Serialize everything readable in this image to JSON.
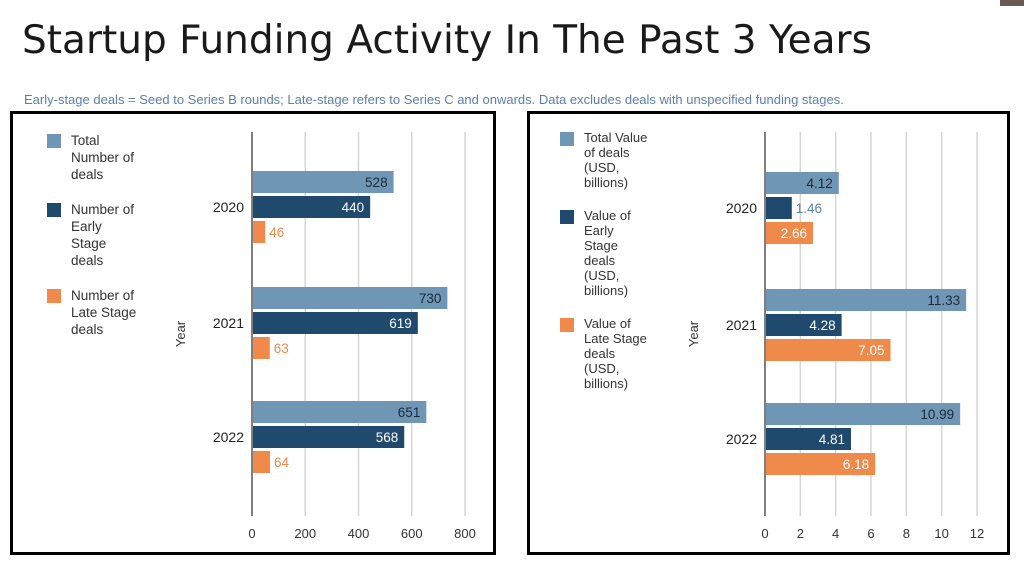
{
  "title": "Startup Funding Activity In The Past 3 Years",
  "subtitle": "Early-stage deals = Seed to Series B rounds; Late-stage refers to Series C and onwards. Data excludes deals with unspecified funding stages.",
  "colors": {
    "total": "#7096b6",
    "early": "#1f4a6e",
    "late": "#f08a4b",
    "grid": "#d6d6d6",
    "axis": "#555555"
  },
  "chart_data": [
    {
      "type": "bar",
      "orientation": "horizontal",
      "categories": [
        "2020",
        "2021",
        "2022"
      ],
      "ylabel": "Year",
      "xlim": [
        0,
        800
      ],
      "xticks": [
        "0",
        "200",
        "400",
        "600",
        "800"
      ],
      "legend_position": "left",
      "grid": true,
      "series": [
        {
          "name": "Total\nNumber of\ndeals",
          "color": "#7096b6",
          "values": [
            528,
            730,
            651
          ],
          "labels": [
            "528",
            "730",
            "651"
          ]
        },
        {
          "name": "Number of\nEarly\nStage\ndeals",
          "color": "#1f4a6e",
          "values": [
            440,
            619,
            568
          ],
          "labels": [
            "440",
            "619",
            "568"
          ]
        },
        {
          "name": "Number of\nLate Stage\ndeals",
          "color": "#f08a4b",
          "values": [
            46,
            63,
            64
          ],
          "labels": [
            "46",
            "63",
            "64"
          ]
        }
      ]
    },
    {
      "type": "bar",
      "orientation": "horizontal",
      "categories": [
        "2020",
        "2021",
        "2022"
      ],
      "ylabel": "Year",
      "xlim": [
        0,
        12
      ],
      "xticks": [
        "0",
        "2",
        "4",
        "6",
        "8",
        "10",
        "12"
      ],
      "legend_position": "left",
      "grid": true,
      "series": [
        {
          "name": "Total Value\nof deals\n(USD,\nbillions)",
          "color": "#7096b6",
          "values": [
            4.12,
            11.33,
            10.99
          ],
          "labels": [
            "4.12",
            "11.33",
            "10.99"
          ]
        },
        {
          "name": "Value of\nEarly\nStage\ndeals\n(USD,\nbillions)",
          "color": "#1f4a6e",
          "values": [
            1.46,
            4.28,
            4.81
          ],
          "labels": [
            "1.46",
            "4.28",
            "4.81"
          ]
        },
        {
          "name": "Value of\nLate Stage\ndeals\n(USD,\nbillions)",
          "color": "#f08a4b",
          "values": [
            2.66,
            7.05,
            6.18
          ],
          "labels": [
            "2.66",
            "7.05",
            "6.18"
          ]
        }
      ]
    }
  ]
}
